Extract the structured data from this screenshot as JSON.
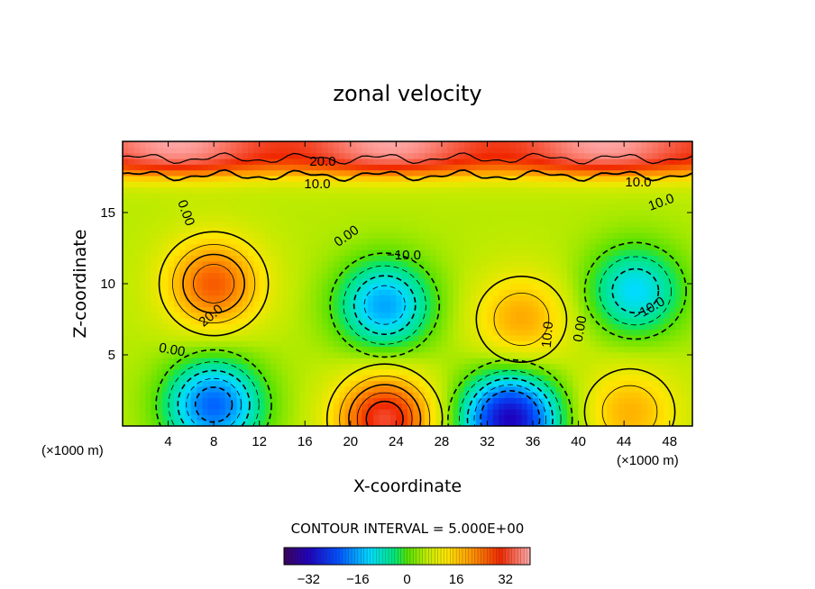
{
  "chart_data": {
    "type": "heatmap",
    "title": "zonal velocity",
    "xlabel": "X-coordinate",
    "ylabel": "Z-coordinate",
    "x_scale_note": "(×1000 m)",
    "x_scale_note_right": "(×1000 m)",
    "z_scale_note": "(×1000 m)",
    "xlim": [
      0,
      50
    ],
    "ylim": [
      0,
      20
    ],
    "x_ticks": [
      4,
      8,
      12,
      16,
      20,
      24,
      28,
      32,
      36,
      40,
      44,
      48
    ],
    "x_tick_labels": [
      "4",
      "8",
      "12",
      "16",
      "20",
      "24",
      "28",
      "32",
      "36",
      "40",
      "44",
      "48"
    ],
    "y_ticks": [
      5,
      10,
      15
    ],
    "y_tick_labels": [
      "5",
      "10",
      "15"
    ],
    "contour_interval_text": "CONTOUR INTERVAL = 5.000E+00",
    "colorbar": {
      "range": [
        -40,
        40
      ],
      "ticks": [
        -32,
        -16,
        0,
        16,
        32
      ],
      "tick_labels": [
        "−32",
        "−16",
        "0",
        "16",
        "32"
      ]
    },
    "contour_labels": [
      "20.0",
      "10.0",
      "10.0",
      "0.00",
      "10.0",
      "0.00",
      "−10.0",
      "20.0",
      "0.00",
      "10.0",
      "0.00",
      "−10.0"
    ],
    "features": [
      {
        "kind": "jet",
        "z_min": 17.2,
        "z_max": 20,
        "value": 30
      },
      {
        "x": 8,
        "z": 10,
        "value": 26
      },
      {
        "x": 23,
        "z": 8.5,
        "value": -16
      },
      {
        "x": 35,
        "z": 7.5,
        "value": 19
      },
      {
        "x": 45,
        "z": 9.5,
        "value": -12
      },
      {
        "x": 8,
        "z": 1.5,
        "value": -21
      },
      {
        "x": 23,
        "z": 0.5,
        "value": 33
      },
      {
        "x": 34,
        "z": 0.5,
        "value": -32
      },
      {
        "x": 44.5,
        "z": 1.0,
        "value": 18
      }
    ]
  }
}
